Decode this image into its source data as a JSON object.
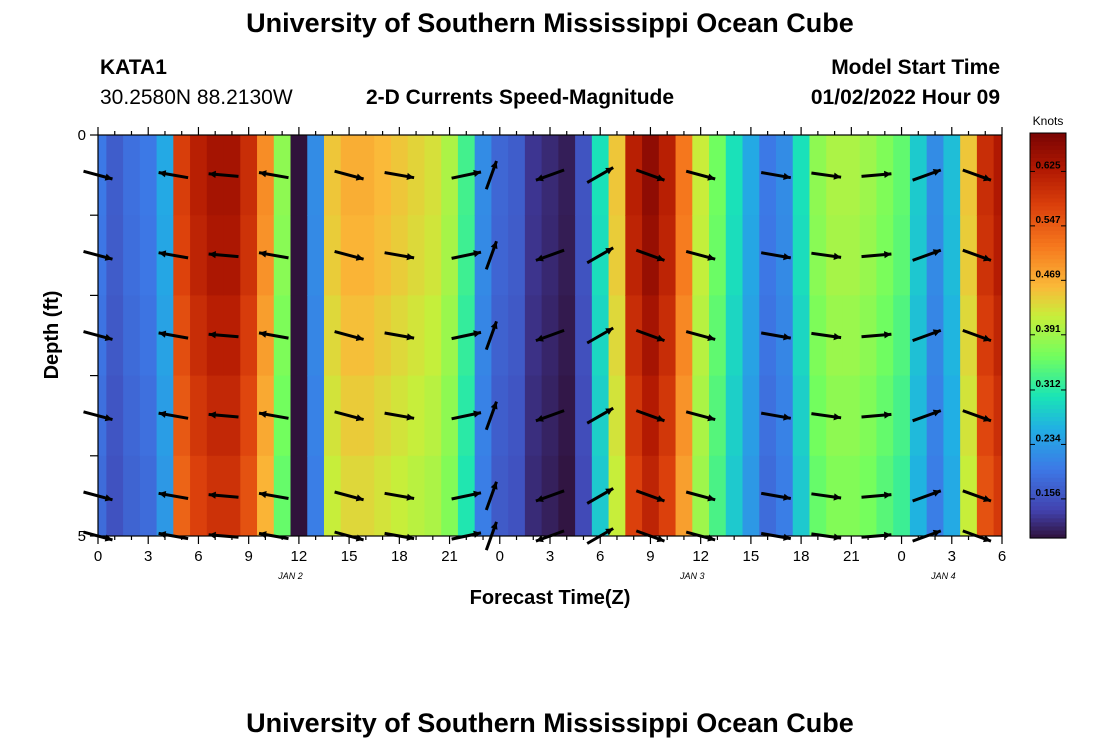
{
  "header": {
    "title": "University of Southern Mississippi Ocean Cube",
    "station_id": "KATA1",
    "coordinates": "30.2580N  88.2130W",
    "subtitle": "2-D Currents Speed-Magnitude",
    "model_label": "Model Start Time",
    "model_time": "01/02/2022 Hour 09"
  },
  "footer": {
    "repeat_title": "University of Southern Mississippi Ocean Cube"
  },
  "chart_data": {
    "type": "heatmap",
    "xlabel": "Forecast Time(Z)",
    "ylabel": "Depth (ft)",
    "x_ticks": [
      "0",
      "3",
      "6",
      "9",
      "12",
      "15",
      "18",
      "21",
      "0",
      "3",
      "6",
      "9",
      "12",
      "15",
      "18",
      "21",
      "0",
      "3",
      "6"
    ],
    "date_labels": [
      {
        "text": "JAN 2",
        "at_tick": 11.5
      },
      {
        "text": "JAN 3",
        "at_tick": 35.5
      },
      {
        "text": "JAN 4",
        "at_tick": 50.5
      }
    ],
    "y_ticks": [
      "0",
      "5"
    ],
    "ylim": [
      0,
      5
    ],
    "xlim_hours": [
      0,
      54
    ],
    "colorbar": {
      "title": "Knots",
      "ticks": [
        "0.625",
        "0.547",
        "0.469",
        "0.391",
        "0.312",
        "0.234",
        "0.156"
      ],
      "tick_values": [
        0.625,
        0.547,
        0.469,
        0.391,
        0.312,
        0.234,
        0.156
      ],
      "range": [
        0.1,
        0.68
      ]
    },
    "depth_levels_ft": [
      0.5,
      1.5,
      2.5,
      3.5,
      4.5
    ],
    "speed_knots_by_hour": [
      0.2,
      0.17,
      0.19,
      0.2,
      0.25,
      0.58,
      0.62,
      0.64,
      0.64,
      0.6,
      0.5,
      0.38,
      0.1,
      0.22,
      0.45,
      0.47,
      0.47,
      0.46,
      0.45,
      0.44,
      0.43,
      0.4,
      0.33,
      0.22,
      0.18,
      0.17,
      0.13,
      0.12,
      0.11,
      0.16,
      0.3,
      0.45,
      0.62,
      0.66,
      0.62,
      0.52,
      0.42,
      0.36,
      0.3,
      0.25,
      0.2,
      0.22,
      0.3,
      0.38,
      0.4,
      0.4,
      0.39,
      0.37,
      0.35,
      0.28,
      0.22,
      0.27,
      0.45,
      0.6,
      0.63
    ],
    "arrow_times_h": [
      0,
      4.5,
      7.5,
      10.5,
      15,
      18,
      22,
      23.5,
      27,
      30,
      33,
      36,
      40.5,
      43.5,
      46.5,
      49.5,
      52.5
    ],
    "arrow_rows_ft": [
      0.5,
      1.5,
      2.5,
      3.5,
      4.5,
      5.0
    ],
    "arrow_direction_deg_by_time": [
      15,
      190,
      185,
      190,
      15,
      10,
      348,
      290,
      160,
      330,
      20,
      15,
      10,
      8,
      355,
      340,
      20
    ]
  }
}
